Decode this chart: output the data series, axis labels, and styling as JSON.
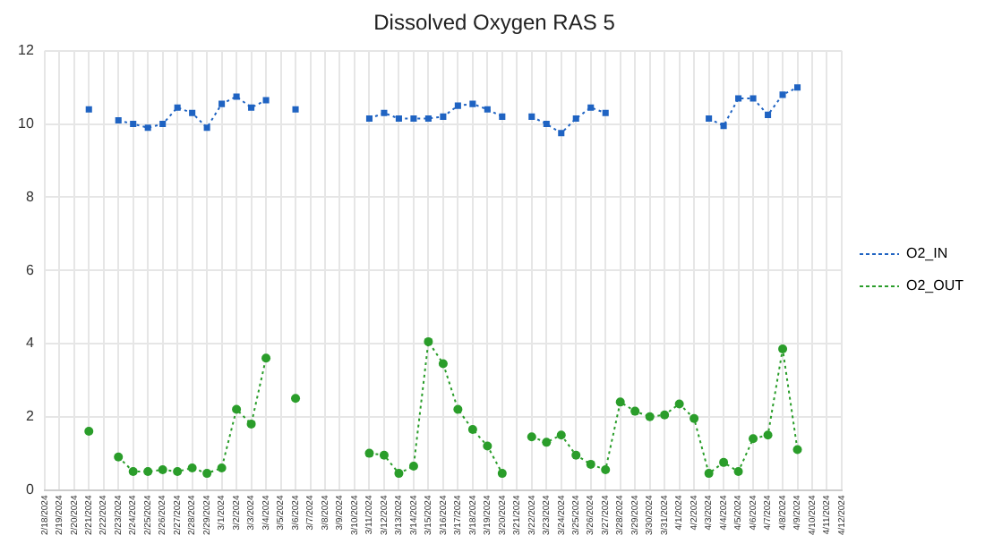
{
  "chart_data": {
    "type": "line",
    "title": "Dissolved Oxygen RAS 5",
    "categories": [
      "2/18/2024",
      "2/19/2024",
      "2/20/2024",
      "2/21/2024",
      "2/22/2024",
      "2/23/2024",
      "2/24/2024",
      "2/25/2024",
      "2/26/2024",
      "2/27/2024",
      "2/28/2024",
      "2/29/2024",
      "3/1/2024",
      "3/2/2024",
      "3/3/2024",
      "3/4/2024",
      "3/5/2024",
      "3/6/2024",
      "3/7/2024",
      "3/8/2024",
      "3/9/2024",
      "3/10/2024",
      "3/11/2024",
      "3/12/2024",
      "3/13/2024",
      "3/14/2024",
      "3/15/2024",
      "3/16/2024",
      "3/17/2024",
      "3/18/2024",
      "3/19/2024",
      "3/20/2024",
      "3/21/2024",
      "3/22/2024",
      "3/23/2024",
      "3/24/2024",
      "3/25/2024",
      "3/26/2024",
      "3/27/2024",
      "3/28/2024",
      "3/29/2024",
      "3/30/2024",
      "3/31/2024",
      "4/1/2024",
      "4/2/2024",
      "4/3/2024",
      "4/4/2024",
      "4/5/2024",
      "4/6/2024",
      "4/7/2024",
      "4/8/2024",
      "4/9/2024",
      "4/10/2024",
      "4/11/2024",
      "4/12/2024"
    ],
    "series": [
      {
        "name": "O2_IN",
        "color": "#1f63c2",
        "marker": "square",
        "values": [
          null,
          null,
          null,
          10.4,
          null,
          10.1,
          10.0,
          9.9,
          10.0,
          10.45,
          10.3,
          9.9,
          10.55,
          10.75,
          10.45,
          10.65,
          null,
          10.4,
          null,
          null,
          null,
          null,
          10.15,
          10.3,
          10.15,
          10.15,
          10.15,
          10.2,
          10.5,
          10.55,
          10.4,
          10.2,
          null,
          10.2,
          10.0,
          9.75,
          10.15,
          10.45,
          10.3,
          null,
          null,
          null,
          null,
          null,
          null,
          10.15,
          9.95,
          10.7,
          10.7,
          10.25,
          10.8,
          11.0,
          null,
          null,
          null
        ]
      },
      {
        "name": "O2_OUT",
        "color": "#2a9d2a",
        "marker": "circle",
        "values": [
          null,
          null,
          null,
          1.6,
          null,
          0.9,
          0.5,
          0.5,
          0.55,
          0.5,
          0.6,
          0.45,
          0.6,
          2.2,
          1.8,
          3.6,
          null,
          2.5,
          null,
          null,
          null,
          null,
          1.0,
          0.95,
          0.45,
          0.65,
          4.05,
          3.45,
          2.2,
          1.65,
          1.2,
          0.45,
          null,
          1.45,
          1.3,
          1.5,
          0.95,
          0.7,
          0.55,
          2.4,
          2.15,
          2.0,
          2.05,
          2.35,
          1.95,
          0.45,
          0.75,
          0.5,
          1.4,
          1.5,
          3.85,
          1.1,
          null,
          null,
          null
        ]
      }
    ],
    "ylim": [
      0,
      12
    ],
    "yticks": [
      0,
      2,
      4,
      6,
      8,
      10,
      12
    ],
    "grid": true,
    "legend": "right",
    "line_style": "dotted"
  }
}
